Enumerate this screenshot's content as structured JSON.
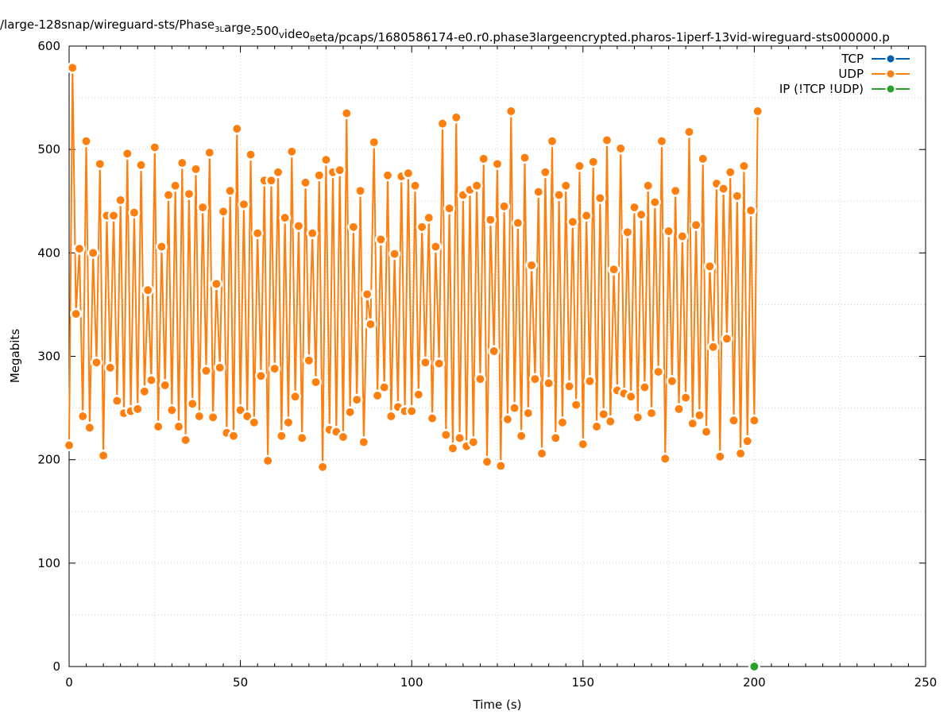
{
  "chart_data": {
    "type": "line",
    "title": "/large-128snap/wireguard-sts/Phase_3_Large_2500_Video_Beta/pcaps/1680586174-e0.r0.phase3largeencrypted.pharos-1iperf-13vid-wireguard-sts000000.p",
    "title_parts": [
      {
        "t": "/large-128snap/wireguard-sts/Phase"
      },
      {
        "t": "3L",
        "sub": true
      },
      {
        "t": "arge"
      },
      {
        "t": "2",
        "sub": true
      },
      {
        "t": "500"
      },
      {
        "t": "V",
        "sub": true
      },
      {
        "t": "ideo"
      },
      {
        "t": "B",
        "sub": true
      },
      {
        "t": "eta/pcaps/1680586174-e0.r0.phase3largeencrypted.pharos-1iperf-13vid-wireguard-sts000000.p"
      }
    ],
    "xlabel": "Time (s)",
    "ylabel": "Megabits",
    "xlim": [
      0,
      250
    ],
    "ylim": [
      0,
      600
    ],
    "xticks": [
      0,
      50,
      100,
      150,
      200,
      250
    ],
    "yticks": [
      0,
      100,
      200,
      300,
      400,
      500,
      600
    ],
    "grid": true,
    "legend_position": "top-right",
    "series": [
      {
        "name": "TCP",
        "color": "#0060ad",
        "x": [],
        "values": []
      },
      {
        "name": "UDP",
        "color": "#ff7f0e",
        "x_start": 0,
        "x_step": 1,
        "values": [
          214,
          579,
          341,
          404,
          242,
          508,
          231,
          400,
          294,
          486,
          204,
          436,
          289,
          436,
          257,
          451,
          245,
          496,
          247,
          439,
          249,
          485,
          266,
          364,
          277,
          502,
          232,
          406,
          272,
          456,
          248,
          465,
          232,
          487,
          219,
          457,
          254,
          481,
          242,
          444,
          286,
          497,
          241,
          370,
          289,
          440,
          226,
          460,
          223,
          520,
          248,
          447,
          242,
          495,
          236,
          419,
          281,
          470,
          199,
          470,
          288,
          478,
          223,
          434,
          236,
          498,
          261,
          426,
          221,
          468,
          296,
          419,
          275,
          475,
          193,
          490,
          229,
          478,
          227,
          480,
          222,
          535,
          246,
          425,
          258,
          460,
          217,
          360,
          331,
          507,
          262,
          413,
          270,
          475,
          242,
          399,
          251,
          474,
          247,
          477,
          247,
          465,
          263,
          425,
          294,
          434,
          240,
          406,
          293,
          525,
          224,
          443,
          211,
          531,
          221,
          456,
          213,
          461,
          217,
          465,
          278,
          491,
          198,
          432,
          305,
          486,
          194,
          445,
          239,
          537,
          250,
          429,
          223,
          492,
          245,
          388,
          278,
          459,
          206,
          478,
          274,
          508,
          221,
          456,
          236,
          465,
          271,
          430,
          253,
          484,
          215,
          436,
          276,
          488,
          232,
          453,
          244,
          509,
          237,
          384,
          267,
          501,
          264,
          420,
          261,
          444,
          241,
          437,
          270,
          465,
          245,
          449,
          285,
          508,
          201,
          421,
          276,
          460,
          249,
          416,
          260,
          517,
          235,
          427,
          243,
          491,
          227,
          387,
          309,
          467,
          203,
          462,
          317,
          478,
          238,
          455,
          206,
          484,
          218,
          441,
          238,
          537
        ]
      },
      {
        "name": "IP (!TCP  !UDP)",
        "color": "#2ca02c",
        "x": [
          200
        ],
        "values": [
          0
        ]
      }
    ]
  }
}
